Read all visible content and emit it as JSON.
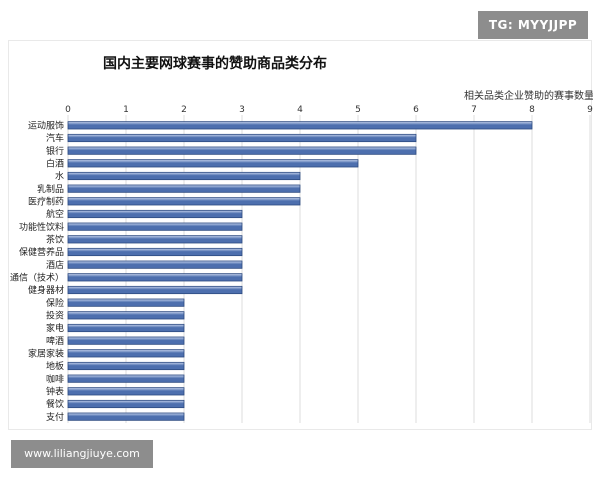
{
  "watermark_tag": "TG: MYYJJPP",
  "watermark_url": "www.liliangjiuye.com",
  "chart_data": {
    "type": "bar",
    "orientation": "horizontal",
    "title": "国内主要网球赛事的赞助商品类分布",
    "xlabel": "相关品类企业赞助的赛事数量",
    "ylabel": "",
    "xlim": [
      0,
      9
    ],
    "x_ticks": [
      0,
      1,
      2,
      3,
      4,
      5,
      6,
      7,
      8,
      9
    ],
    "x_axis_position": "top",
    "grid": true,
    "legend": "none",
    "bar_color": "#4d6fae",
    "bar_color_light": "#c7d4ee",
    "categories": [
      "运动服饰",
      "汽车",
      "银行",
      "白酒",
      "水",
      "乳制品",
      "医疗制药",
      "航空",
      "功能性饮料",
      "茶饮",
      "保健营养品",
      "酒店",
      "通信（技术）",
      "健身器材",
      "保险",
      "投资",
      "家电",
      "啤酒",
      "家居家装",
      "地板",
      "咖啡",
      "钟表",
      "餐饮",
      "支付"
    ],
    "values": [
      8,
      6,
      6,
      5,
      4,
      4,
      4,
      3,
      3,
      3,
      3,
      3,
      3,
      3,
      2,
      2,
      2,
      2,
      2,
      2,
      2,
      2,
      2,
      2
    ]
  }
}
